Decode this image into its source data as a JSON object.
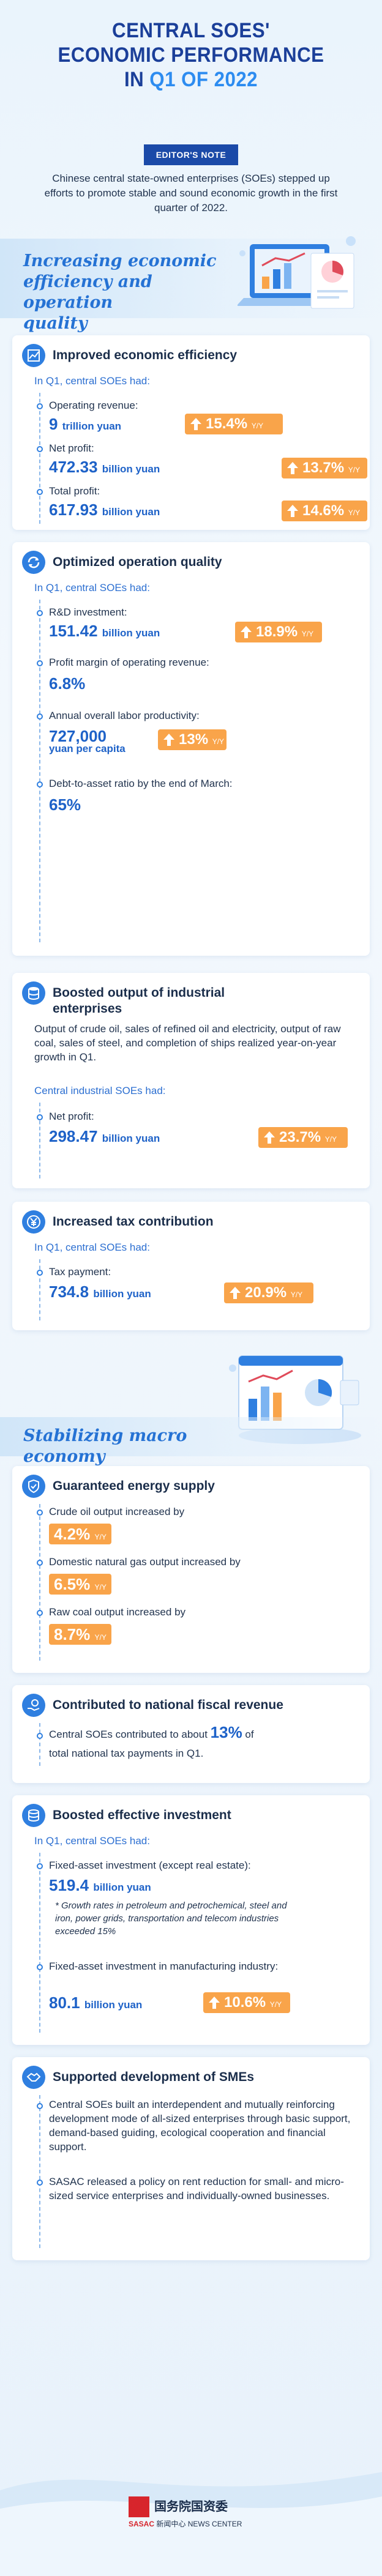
{
  "header": {
    "title_line1": "CENTRAL SOES'",
    "title_line2": "ECONOMIC PERFORMANCE",
    "title_line3_prefix": "IN ",
    "title_line3_accent": "Q1 OF 2022",
    "editor_badge": "EDITOR'S NOTE",
    "intro": "Chinese central state-owned enterprises (SOEs) stepped up efforts to promote stable and sound economic growth in the first quarter of 2022."
  },
  "section1": {
    "title_line1": "Increasing economic",
    "title_line2": "efficiency and operation",
    "title_line3": "quality"
  },
  "efficiency": {
    "title": "Improved economic efficiency",
    "subhead": "In Q1, central SOEs had:",
    "items": [
      {
        "label": "Operating revenue:",
        "value": "9",
        "unit": "trillion yuan",
        "growth": "15.4%",
        "yy": "Y/Y"
      },
      {
        "label": "Net profit:",
        "value": "472.33",
        "unit": "billion yuan",
        "growth": "13.7%",
        "yy": "Y/Y"
      },
      {
        "label": "Total profit:",
        "value": "617.93",
        "unit": "billion yuan",
        "growth": "14.6%",
        "yy": "Y/Y"
      }
    ]
  },
  "quality": {
    "title": "Optimized operation quality",
    "subhead": "In Q1, central SOEs had:",
    "rd_label": "R&D investment:",
    "rd_value": "151.42",
    "rd_unit": "billion yuan",
    "rd_growth": "18.9%",
    "rd_yy": "Y/Y",
    "margin_label": "Profit margin of operating revenue:",
    "margin_value": "6.8%",
    "labor_label": "Annual overall labor productivity:",
    "labor_value": "727,000",
    "labor_unit": "yuan per capita",
    "labor_growth": "13%",
    "labor_yy": "Y/Y",
    "debt_label": "Debt-to-asset ratio by the end of March:",
    "debt_value": "65%"
  },
  "industrial": {
    "title_line1": "Boosted output of industrial",
    "title_line2": "enterprises",
    "para": "Output of crude oil, sales of refined oil and electricity, output of raw coal, sales of steel, and completion of ships realized year-on-year growth in Q1.",
    "subhead": "Central industrial SOEs had:",
    "label": "Net profit:",
    "value": "298.47",
    "unit": "billion yuan",
    "growth": "23.7%",
    "yy": "Y/Y"
  },
  "tax": {
    "title": "Increased tax contribution",
    "subhead": "In Q1, central SOEs had:",
    "label": "Tax payment:",
    "value": "734.8",
    "unit": "billion yuan",
    "growth": "20.9%",
    "yy": "Y/Y"
  },
  "section2": {
    "title": "Stabilizing macro economy"
  },
  "energy": {
    "title": "Guaranteed energy supply",
    "items": [
      {
        "label": "Crude oil output increased by",
        "value": "4.2%",
        "yy": "Y/Y"
      },
      {
        "label": "Domestic natural gas output increased by",
        "value": "6.5%",
        "yy": "Y/Y"
      },
      {
        "label": "Raw coal output increased by",
        "value": "8.7%",
        "yy": "Y/Y"
      }
    ]
  },
  "fiscal": {
    "title": "Contributed to national fiscal revenue",
    "text_before": "Central SOEs contributed to about ",
    "value": "13%",
    "text_after": " of",
    "text_line2": "total national tax payments in Q1."
  },
  "investment": {
    "title": "Boosted effective investment",
    "subhead": "In Q1, central SOEs had:",
    "fixed_label": "Fixed-asset investment (except real estate):",
    "fixed_value": "519.4",
    "fixed_unit": "billion yuan",
    "fixed_note": "* Growth rates in petroleum and petrochemical, steel and iron, power grids, transportation and telecom industries exceeded 15%",
    "mfg_label": "Fixed-asset investment in manufacturing industry:",
    "mfg_value": "80.1",
    "mfg_unit": "billion yuan",
    "mfg_growth": "10.6%",
    "mfg_yy": "Y/Y"
  },
  "smes": {
    "title": "Supported development of SMEs",
    "para1": "Central SOEs built an interdependent and mutually reinforcing development mode of all-sized enterprises through basic support, demand-based guiding, ecological cooperation and financial support.",
    "para2": "SASAC released a policy on rent reduction for small- and micro-sized service enterprises and individually-owned businesses."
  },
  "footer": {
    "cn": "国务院国资委",
    "en_prefix": "SASAC",
    "en_text": "新闻中心 NEWS CENTER"
  },
  "colors": {
    "primary": "#2f7fe0",
    "title_blue": "#1b3f99",
    "orange": "#f9a44a"
  }
}
